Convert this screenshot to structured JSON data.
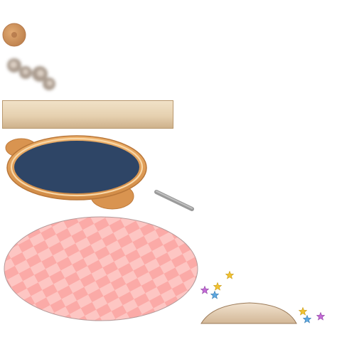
{
  "scene": {
    "title": "",
    "sprites": [
      {
        "name": "cookie-ball",
        "color": "#c98f5a"
      },
      {
        "name": "smoke-puffs",
        "color": "#a08c7a"
      },
      {
        "name": "wooden-shelf-board",
        "color": "#e8d4b4"
      },
      {
        "name": "bear-ear-tray",
        "rim": "#e0a05a",
        "fill": "#2e4566"
      },
      {
        "name": "grey-stick",
        "color": "#a9a9a9"
      },
      {
        "name": "pink-checkered-rug",
        "light": "#fdc3c0",
        "dark": "#fbaaa7"
      },
      {
        "name": "sand-mound",
        "color": "#e2cbb0"
      }
    ],
    "stars": [
      {
        "color": "#f2c230"
      },
      {
        "color": "#f2c230"
      },
      {
        "color": "#c36ad6"
      },
      {
        "color": "#5ea8e0"
      },
      {
        "color": "#f2c230"
      },
      {
        "color": "#5ea8e0"
      },
      {
        "color": "#c36ad6"
      }
    ]
  }
}
